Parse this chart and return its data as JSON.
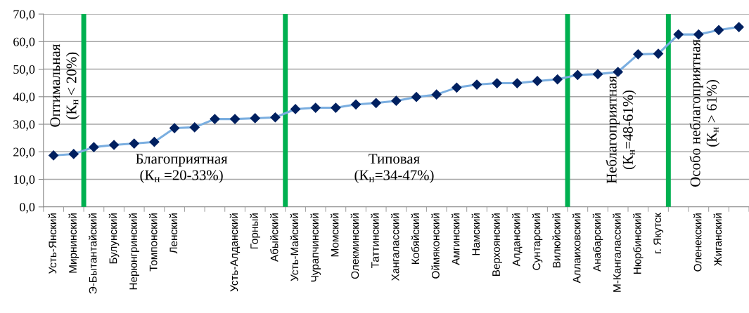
{
  "chart_data": {
    "type": "line",
    "categories": [
      "Усть-Янский",
      "Мирнинский",
      "Э-Бытантайский",
      "Булунский",
      "Нерюнгринский",
      "Томпонский",
      "Ленский",
      null,
      null,
      "Усть-Алданский",
      "Горный",
      "Абыйский",
      "Усть-Майский",
      "Чурапчинский",
      "Момский",
      "Олекминский",
      "Таттинский",
      "Хангаласский",
      "Кобяйский",
      "Оймяконский",
      "Амгинский",
      "Намский",
      "Верхоянский",
      "Алданский",
      "Сунтарский",
      "Вилюйский",
      "Аллаиховский",
      "Анабарский",
      "М-Кангаласский",
      "Нюрбинский",
      "г. Якутск",
      null,
      "Оленекский",
      "Жиганский",
      null
    ],
    "series": [
      {
        "color": "#7aaee0",
        "values": [
          18.7,
          19.2,
          21.7,
          22.5,
          23.0,
          23.6,
          28.6,
          28.9,
          31.9,
          31.9,
          32.2,
          32.5,
          35.5,
          36.0,
          36.0,
          37.2,
          37.7,
          38.5,
          39.9,
          40.8,
          43.3,
          44.4,
          44.9,
          44.9,
          45.7,
          46.3,
          47.9,
          48.2,
          49.0,
          55.4,
          55.6,
          62.6,
          62.6,
          64.2,
          65.3
        ]
      }
    ],
    "ylim": [
      0,
      70
    ],
    "yticks": [
      {
        "value": 0,
        "label": "0,0"
      },
      {
        "value": 10,
        "label": "10,0"
      },
      {
        "value": 20,
        "label": "20,0"
      },
      {
        "value": 30,
        "label": "30,0"
      },
      {
        "value": 40,
        "label": "40,0"
      },
      {
        "value": 50,
        "label": "50,0"
      },
      {
        "value": 60,
        "label": "60,0"
      },
      {
        "value": 70,
        "label": "70,0"
      }
    ],
    "grid": "y",
    "marker": "diamond",
    "line_style": "solid",
    "legend": false,
    "annotations": [
      "Оптимальная\n(К$_{н}$ < 20%)",
      "Благоприятная\n(К$_{н}$ =20-33%)",
      "Типовая\n(К$_{н}$=34-47%)",
      "Неблагоприятная\n(К$_{н}$=48-61%)",
      "Особо неблагоприятная\n(К$_{н}$ > 61%)"
    ]
  }
}
